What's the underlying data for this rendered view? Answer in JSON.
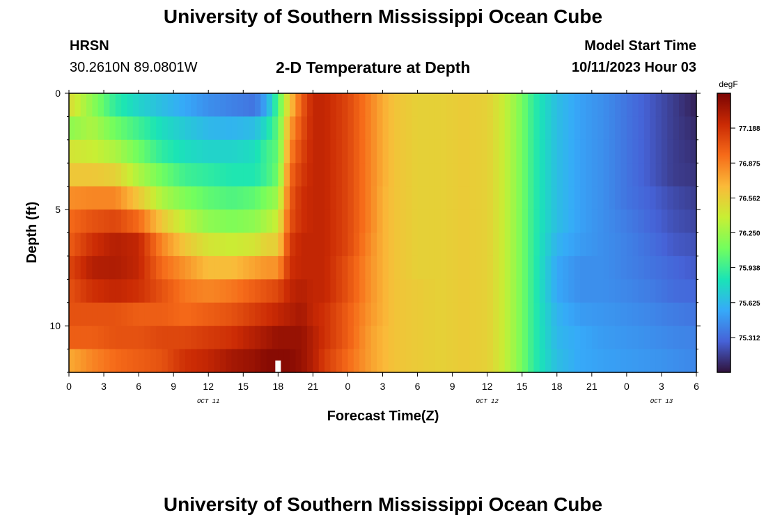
{
  "header": {
    "title": "University of Southern Mississippi Ocean Cube",
    "station": "HRSN",
    "coords": "30.2610N  89.0801W",
    "subtitle": "2-D Temperature at Depth",
    "model_start_label": "Model Start Time",
    "model_start_value": "10/11/2023 Hour 03"
  },
  "footer": {
    "title": "University of Southern Mississippi Ocean Cube"
  },
  "colors": {
    "colormap": [
      "#30123b",
      "#4662d7",
      "#36aaf9",
      "#1ae4b6",
      "#72fe5e",
      "#c8ef34",
      "#faba39",
      "#f66b19",
      "#ca2a04",
      "#7a0403"
    ],
    "now_marker": "#ffffff"
  },
  "chart_data": {
    "type": "heatmap",
    "title": "2-D Temperature at Depth",
    "xlabel": "Forecast Time(Z)",
    "ylabel": "Depth (ft)",
    "x_tick_labels": [
      "0",
      "3",
      "6",
      "9",
      "12",
      "15",
      "18",
      "21",
      "0",
      "3",
      "6",
      "9",
      "12",
      "15",
      "18",
      "21",
      "0",
      "3",
      "6"
    ],
    "x_tick_hours": [
      0,
      3,
      6,
      9,
      12,
      15,
      18,
      21,
      24,
      27,
      30,
      33,
      36,
      39,
      42,
      45,
      48,
      51,
      54
    ],
    "x_range_hours": [
      0,
      54
    ],
    "date_labels": [
      {
        "text": "OCT 11",
        "hour": 12
      },
      {
        "text": "OCT 12",
        "hour": 36
      },
      {
        "text": "OCT 13",
        "hour": 51
      }
    ],
    "y_tick_labels": [
      "0",
      "5",
      "10"
    ],
    "y_tick_values": [
      0,
      5,
      10
    ],
    "y_range": [
      0,
      12
    ],
    "depth_levels_ft": [
      0.5,
      1.5,
      2.5,
      3.5,
      4.5,
      5.5,
      6.5,
      7.5,
      8.5,
      9.5,
      10.5,
      11.5
    ],
    "time_step_hours": 0.5,
    "colorbar": {
      "unit": "degF",
      "ticks": [
        "77.188",
        "76.875",
        "76.562",
        "76.250",
        "75.938",
        "75.625",
        "75.312"
      ],
      "tick_values": [
        77.188,
        76.875,
        76.562,
        76.25,
        75.938,
        75.625,
        75.312
      ],
      "vmin": 75.0,
      "vmax": 77.5
    },
    "now_marker_hour": 18,
    "anchors_hours": [
      0,
      2,
      4,
      6,
      8,
      10,
      12,
      14,
      16,
      17,
      18,
      19,
      20,
      21,
      22,
      24,
      26,
      27,
      28,
      30,
      32,
      34,
      36,
      37,
      38,
      39,
      40,
      42,
      44,
      46,
      48,
      50,
      52,
      54
    ],
    "anchor_profiles_degF": [
      [
        76.5,
        76.2,
        76.45,
        76.6,
        76.82,
        76.95,
        77.0,
        77.1,
        77.05,
        77.05,
        77.0,
        76.72
      ],
      [
        76.2,
        76.3,
        76.4,
        76.6,
        76.85,
        77.05,
        77.2,
        77.3,
        77.2,
        77.05,
        77.0,
        76.85
      ],
      [
        75.9,
        76.1,
        76.3,
        76.55,
        76.85,
        77.1,
        77.3,
        77.32,
        77.25,
        77.05,
        77.05,
        76.95
      ],
      [
        75.75,
        75.95,
        76.1,
        76.3,
        76.6,
        76.95,
        77.25,
        77.25,
        77.2,
        77.0,
        77.05,
        77.0
      ],
      [
        75.65,
        75.8,
        75.9,
        76.1,
        76.3,
        76.6,
        76.85,
        76.95,
        77.05,
        77.0,
        77.1,
        77.05
      ],
      [
        75.55,
        75.7,
        75.8,
        75.95,
        76.15,
        76.35,
        76.6,
        76.8,
        76.9,
        76.95,
        77.1,
        77.2
      ],
      [
        75.45,
        75.62,
        75.75,
        75.9,
        76.05,
        76.2,
        76.45,
        76.65,
        76.85,
        77.0,
        77.15,
        77.25
      ],
      [
        75.4,
        75.6,
        75.75,
        75.85,
        76.0,
        76.15,
        76.4,
        76.65,
        76.9,
        77.05,
        77.2,
        77.35
      ],
      [
        75.35,
        75.65,
        75.8,
        75.85,
        76.05,
        76.2,
        76.45,
        76.75,
        77.0,
        77.15,
        77.3,
        77.4
      ],
      [
        75.55,
        75.8,
        75.95,
        75.95,
        76.15,
        76.3,
        76.55,
        76.8,
        77.05,
        77.2,
        77.35,
        77.45
      ],
      [
        76.0,
        76.05,
        76.05,
        76.1,
        76.25,
        76.4,
        76.55,
        76.8,
        77.1,
        77.25,
        77.4,
        77.45
      ],
      [
        76.6,
        76.75,
        76.85,
        76.95,
        77.0,
        77.05,
        77.15,
        77.2,
        77.25,
        77.3,
        77.4,
        77.45
      ],
      [
        77.0,
        77.05,
        77.1,
        77.15,
        77.2,
        77.2,
        77.25,
        77.25,
        77.3,
        77.35,
        77.4,
        77.4
      ],
      [
        77.25,
        77.25,
        77.25,
        77.25,
        77.25,
        77.25,
        77.25,
        77.25,
        77.25,
        77.25,
        77.3,
        77.3
      ],
      [
        77.25,
        77.25,
        77.25,
        77.25,
        77.25,
        77.25,
        77.25,
        77.25,
        77.25,
        77.2,
        77.2,
        77.15
      ],
      [
        77.1,
        77.1,
        77.1,
        77.1,
        77.1,
        77.1,
        77.1,
        77.05,
        77.05,
        77.0,
        77.0,
        76.95
      ],
      [
        76.85,
        76.85,
        76.85,
        76.85,
        76.85,
        76.85,
        76.82,
        76.8,
        76.8,
        76.78,
        76.75,
        76.75
      ],
      [
        76.72,
        76.72,
        76.72,
        76.72,
        76.7,
        76.7,
        76.7,
        76.7,
        76.7,
        76.7,
        76.68,
        76.68
      ],
      [
        76.62,
        76.62,
        76.62,
        76.62,
        76.62,
        76.62,
        76.62,
        76.62,
        76.62,
        76.62,
        76.62,
        76.62
      ],
      [
        76.55,
        76.55,
        76.55,
        76.55,
        76.55,
        76.55,
        76.55,
        76.55,
        76.58,
        76.58,
        76.58,
        76.58
      ],
      [
        76.55,
        76.55,
        76.55,
        76.55,
        76.55,
        76.55,
        76.55,
        76.55,
        76.55,
        76.55,
        76.55,
        76.55
      ],
      [
        76.58,
        76.58,
        76.58,
        76.58,
        76.58,
        76.58,
        76.58,
        76.58,
        76.58,
        76.58,
        76.58,
        76.58
      ],
      [
        76.55,
        76.55,
        76.55,
        76.55,
        76.55,
        76.55,
        76.55,
        76.55,
        76.55,
        76.55,
        76.55,
        76.55
      ],
      [
        76.45,
        76.45,
        76.45,
        76.45,
        76.45,
        76.45,
        76.45,
        76.45,
        76.45,
        76.45,
        76.45,
        76.45
      ],
      [
        76.3,
        76.3,
        76.3,
        76.3,
        76.3,
        76.3,
        76.3,
        76.3,
        76.3,
        76.3,
        76.3,
        76.3
      ],
      [
        76.12,
        76.12,
        76.12,
        76.12,
        76.12,
        76.12,
        76.12,
        76.12,
        76.12,
        76.12,
        76.12,
        76.12
      ],
      [
        75.9,
        75.9,
        75.9,
        75.9,
        75.9,
        75.9,
        75.9,
        75.9,
        75.9,
        75.9,
        75.9,
        75.9
      ],
      [
        75.65,
        75.65,
        75.65,
        75.65,
        75.65,
        75.65,
        75.6,
        75.55,
        75.55,
        75.6,
        75.62,
        75.65
      ],
      [
        75.52,
        75.52,
        75.52,
        75.52,
        75.52,
        75.52,
        75.5,
        75.45,
        75.45,
        75.5,
        75.55,
        75.55
      ],
      [
        75.45,
        75.45,
        75.45,
        75.45,
        75.45,
        75.45,
        75.45,
        75.45,
        75.45,
        75.48,
        75.5,
        75.52
      ],
      [
        75.35,
        75.35,
        75.35,
        75.35,
        75.35,
        75.38,
        75.4,
        75.4,
        75.42,
        75.45,
        75.48,
        75.5
      ],
      [
        75.25,
        75.25,
        75.25,
        75.25,
        75.28,
        75.3,
        75.33,
        75.35,
        75.38,
        75.42,
        75.45,
        75.48
      ],
      [
        75.15,
        75.15,
        75.15,
        75.15,
        75.2,
        75.22,
        75.25,
        75.3,
        75.32,
        75.38,
        75.42,
        75.45
      ],
      [
        75.05,
        75.08,
        75.1,
        75.12,
        75.15,
        75.18,
        75.22,
        75.25,
        75.3,
        75.35,
        75.4,
        75.42
      ]
    ]
  }
}
